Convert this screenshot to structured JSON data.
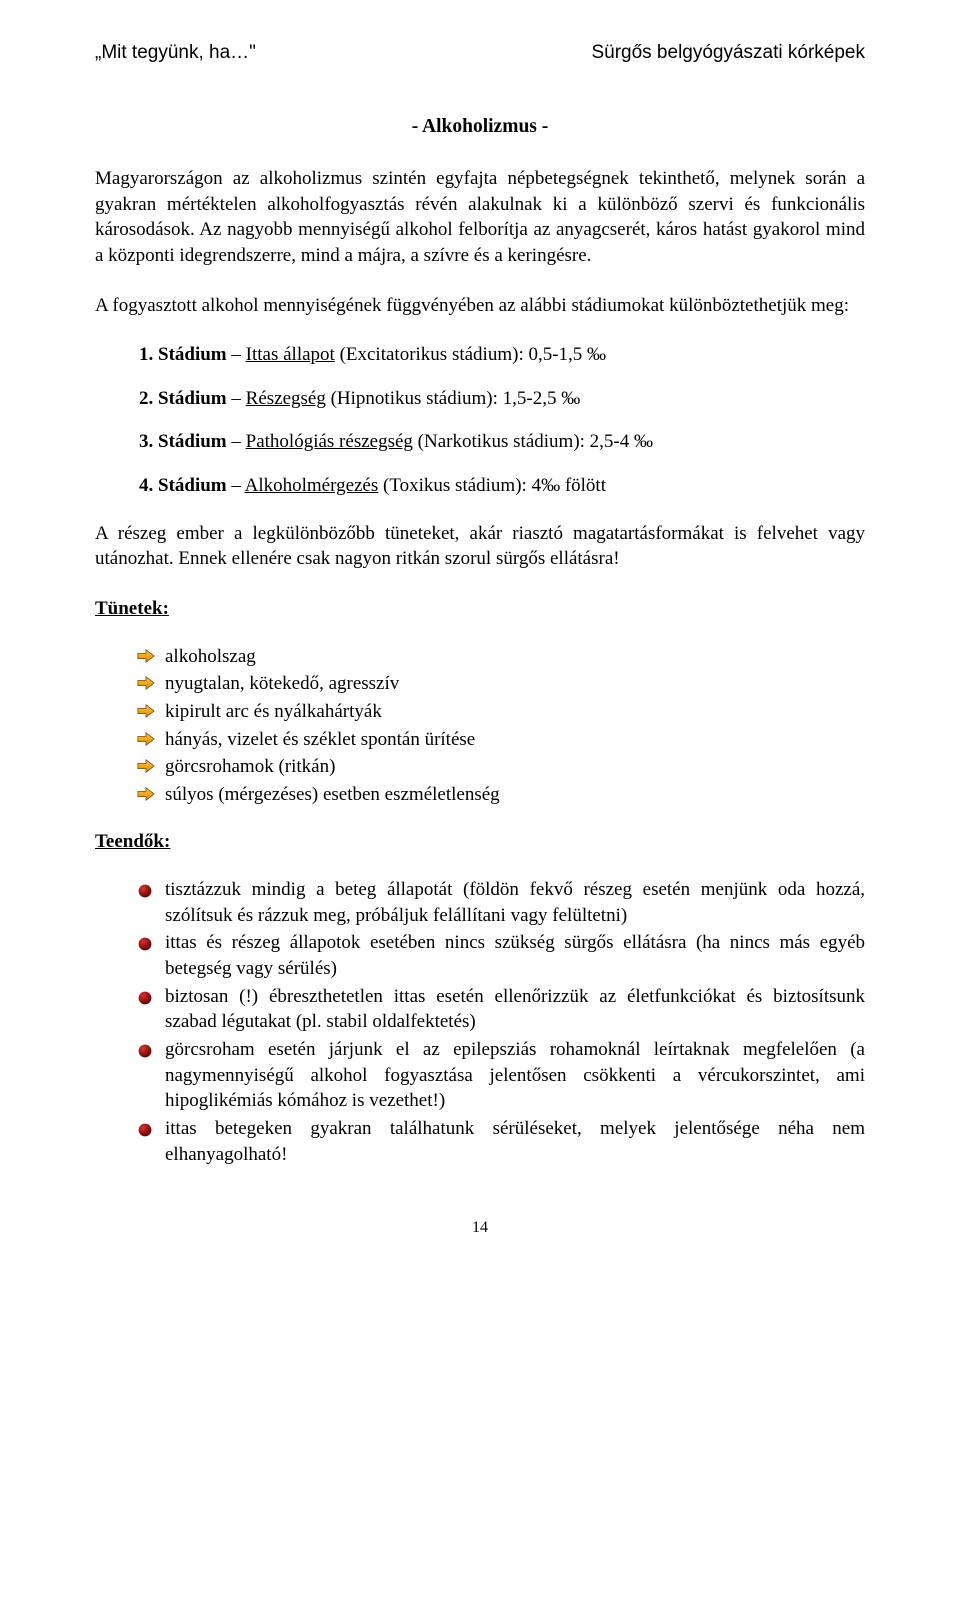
{
  "header": {
    "left": "„Mit tegyünk, ha…\"",
    "right": "Sürgős belgyógyászati kórképek"
  },
  "title": "- Alkoholizmus -",
  "para1": "Magyarországon az alkoholizmus szintén egyfajta népbetegségnek tekinthető, melynek során a gyakran mértéktelen alkoholfogyasztás révén alakulnak ki a különböző szervi és funkcionális károsodások. Az nagyobb mennyiségű alkohol felborítja az anyagcserét, káros hatást gyakorol mind a központi idegrendszerre, mind a májra, a szívre és a keringésre.",
  "para2": "A fogyasztott alkohol mennyiségének függvényében az alábbi stádiumokat különböztethetjük meg:",
  "stadiums": [
    {
      "num": "1. Stádium",
      "ul": "Ittas állapot",
      "rest": " (Excitatorikus stádium): 0,5-1,5 ‰"
    },
    {
      "num": "2. Stádium",
      "ul": "Részegség",
      "rest": " (Hipnotikus stádium): 1,5-2,5 ‰"
    },
    {
      "num": "3. Stádium",
      "ul": "Pathológiás részegség",
      "rest": " (Narkotikus stádium): 2,5-4 ‰"
    },
    {
      "num": "4. Stádium",
      "ul": "Alkoholmérgezés",
      "rest": " (Toxikus stádium): 4‰ fölött"
    }
  ],
  "para3": "A részeg ember a legkülönbözőbb tüneteket, akár riasztó magatartásformákat is felvehet vagy utánozhat. Ennek ellenére csak nagyon ritkán szorul sürgős ellátásra!",
  "tunetek_label": "Tünetek:",
  "tunetek": [
    "alkoholszag",
    "nyugtalan, kötekedő, agresszív",
    "kipirult arc és nyálkahártyák",
    "hányás, vizelet és széklet spontán ürítése",
    "görcsrohamok (ritkán)",
    "súlyos (mérgezéses) esetben eszméletlenség"
  ],
  "teendok_label": "Teendők:",
  "teendok": [
    "tisztázzuk mindig a beteg állapotát (földön fekvő részeg esetén menjünk oda hozzá, szólítsuk és rázzuk meg, próbáljuk felállítani vagy felültetni)",
    "ittas és részeg állapotok esetében nincs szükség sürgős ellátásra (ha nincs más egyéb betegség vagy sérülés)",
    "biztosan (!) ébreszthetetlen ittas esetén ellenőrizzük az életfunkciókat és biztosítsunk szabad légutakat (pl. stabil oldalfektetés)",
    "görcsroham esetén járjunk el az epilepsziás rohamoknál leírtaknak megfelelően (a nagymennyiségű alkohol fogyasztása jelentősen csökkenti a vércukorszintet, ami hipoglikémiás kómához is vezethet!)",
    "ittas betegeken gyakran találhatunk sérüléseket, melyek jelentősége néha nem elhanyagolható!"
  ],
  "pagenum": "14",
  "style": {
    "arrow_fill_top": "#ffc84a",
    "arrow_fill_bottom": "#d88a00",
    "arrow_stroke": "#6b3a00",
    "dot_dark": "#5a0000",
    "dot_light": "#e03030"
  }
}
